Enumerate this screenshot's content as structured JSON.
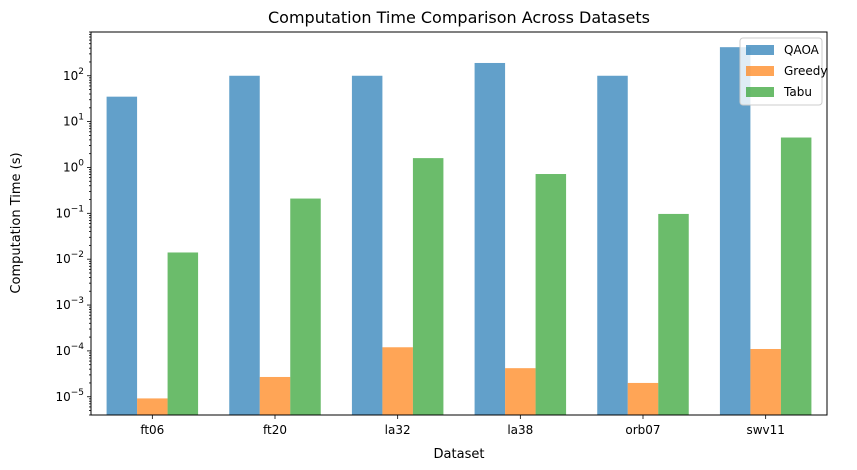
{
  "chart_data": {
    "type": "bar",
    "title": "Computation Time Comparison Across Datasets",
    "xlabel": "Dataset",
    "ylabel": "Computation Time (s)",
    "yscale": "log",
    "ylim": [
      4e-06,
      900
    ],
    "grid": false,
    "legend_position": "top-right",
    "categories": [
      "ft06",
      "ft20",
      "la32",
      "la38",
      "orb07",
      "swv11"
    ],
    "series": [
      {
        "name": "QAOA",
        "color": "#1f77b4",
        "values": [
          35,
          100,
          100,
          190,
          100,
          420
        ]
      },
      {
        "name": "Greedy",
        "color": "#ff7f0e",
        "values": [
          9.2e-06,
          2.7e-05,
          0.00012,
          4.2e-05,
          2e-05,
          0.00011
        ]
      },
      {
        "name": "Tabu",
        "color": "#2ca02c",
        "values": [
          0.014,
          0.21,
          1.6,
          0.72,
          0.097,
          4.5
        ]
      }
    ],
    "y_tick_labels": [
      {
        "base": "10",
        "exp": "−5"
      },
      {
        "base": "10",
        "exp": "−4"
      },
      {
        "base": "10",
        "exp": "−3"
      },
      {
        "base": "10",
        "exp": "−2"
      },
      {
        "base": "10",
        "exp": "−1"
      },
      {
        "base": "10",
        "exp": "0"
      },
      {
        "base": "10",
        "exp": "1"
      },
      {
        "base": "10",
        "exp": "2"
      }
    ]
  }
}
